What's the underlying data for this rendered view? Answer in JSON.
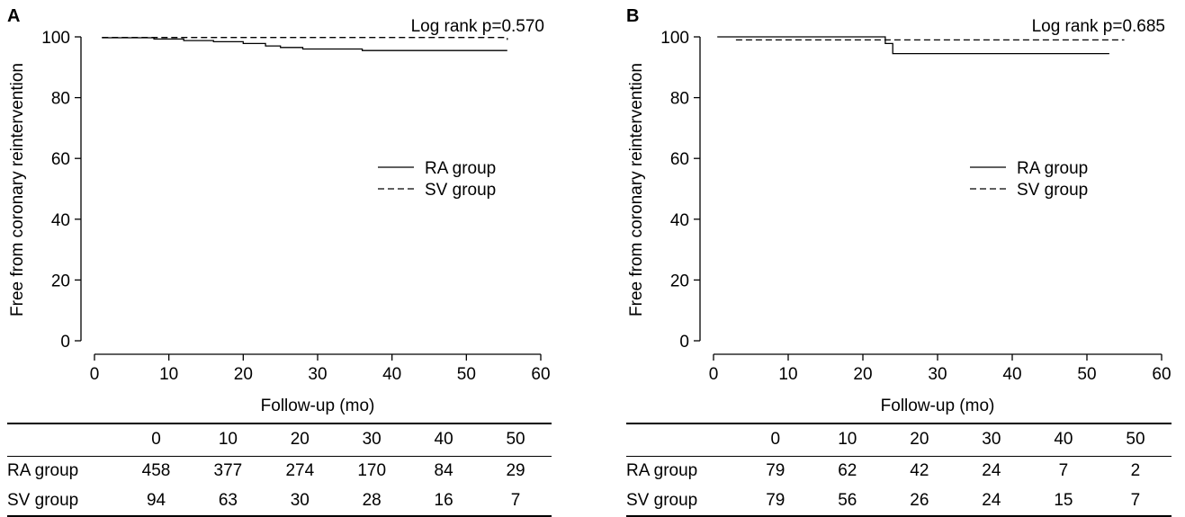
{
  "panels": [
    {
      "letter": "A",
      "annotation": "Log rank p=0.570",
      "ylabel": "Free from coronary reintervention",
      "xlabel": "Follow-up (mo)",
      "legend": [
        {
          "label": "RA group",
          "style": "solid"
        },
        {
          "label": "SV group",
          "style": "dashed"
        }
      ],
      "table": {
        "header": [
          "",
          "0",
          "10",
          "20",
          "30",
          "40",
          "50"
        ],
        "rows": [
          {
            "label": "RA group",
            "values": [
              "458",
              "377",
              "274",
              "170",
              "84",
              "29"
            ]
          },
          {
            "label": "SV group",
            "values": [
              "94",
              "63",
              "30",
              "28",
              "16",
              "7"
            ]
          }
        ]
      }
    },
    {
      "letter": "B",
      "annotation": "Log rank p=0.685",
      "ylabel": "Free from coronary reintervention",
      "xlabel": "Follow-up (mo)",
      "legend": [
        {
          "label": "RA group",
          "style": "solid"
        },
        {
          "label": "SV group",
          "style": "dashed"
        }
      ],
      "table": {
        "header": [
          "",
          "0",
          "10",
          "20",
          "30",
          "40",
          "50"
        ],
        "rows": [
          {
            "label": "RA group",
            "values": [
              "79",
              "62",
              "42",
              "24",
              "7",
              "2"
            ]
          },
          {
            "label": "SV group",
            "values": [
              "79",
              "56",
              "26",
              "24",
              "15",
              "7"
            ]
          }
        ]
      }
    }
  ],
  "chart_data": [
    {
      "type": "line",
      "xlabel": "Follow-up (mo)",
      "ylabel": "Free from coronary reintervention",
      "xlim": [
        0,
        60
      ],
      "ylim": [
        0,
        100
      ],
      "xticks": [
        0,
        10,
        20,
        30,
        40,
        50,
        60
      ],
      "yticks": [
        0,
        20,
        40,
        60,
        80,
        100
      ],
      "step": true,
      "legend_position": "right",
      "series": [
        {
          "name": "RA group",
          "style": "solid",
          "x": [
            1,
            8,
            12,
            16,
            20,
            23,
            25,
            28,
            36,
            55.5
          ],
          "y": [
            99.7,
            99.3,
            98.8,
            98.4,
            97.8,
            97.0,
            96.5,
            96.0,
            95.5,
            95.5
          ]
        },
        {
          "name": "SV group",
          "style": "dashed",
          "x": [
            1,
            55.5
          ],
          "y": [
            99.8,
            99.0
          ]
        }
      ]
    },
    {
      "type": "line",
      "xlabel": "Follow-up (mo)",
      "ylabel": "Free from coronary reintervention",
      "xlim": [
        0,
        60
      ],
      "ylim": [
        0,
        100
      ],
      "xticks": [
        0,
        10,
        20,
        30,
        40,
        50,
        60
      ],
      "yticks": [
        0,
        20,
        40,
        60,
        80,
        100
      ],
      "step": true,
      "legend_position": "right",
      "series": [
        {
          "name": "RA group",
          "style": "solid",
          "x": [
            0.5,
            23,
            24,
            53
          ],
          "y": [
            100,
            97.8,
            94.5,
            94.5
          ]
        },
        {
          "name": "SV group",
          "style": "dashed",
          "x": [
            3,
            55
          ],
          "y": [
            99.0,
            99.0
          ]
        }
      ]
    }
  ]
}
